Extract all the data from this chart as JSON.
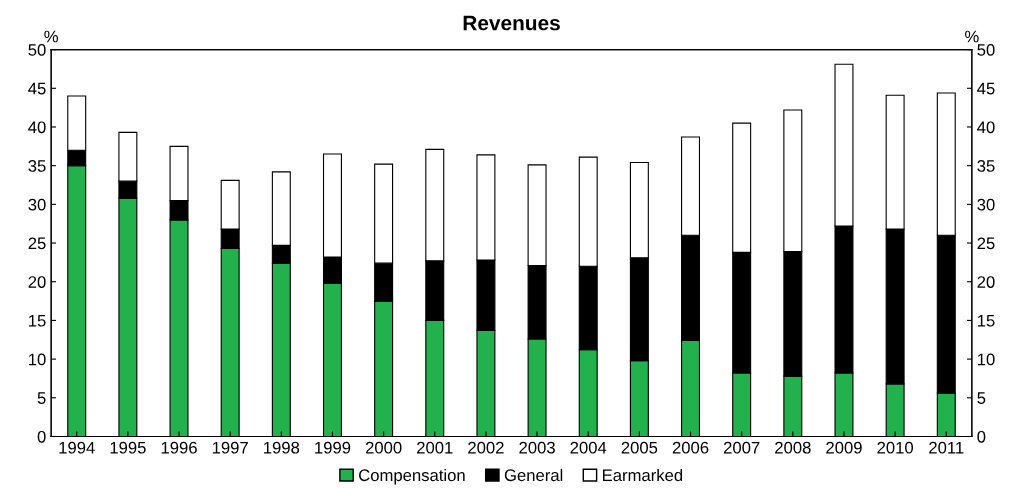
{
  "chart_data": {
    "type": "bar",
    "title": "Revenues",
    "ylabel": "%",
    "y2label": "%",
    "stacked": true,
    "categories": [
      "1994",
      "1995",
      "1996",
      "1997",
      "1998",
      "1999",
      "2000",
      "2001",
      "2002",
      "2003",
      "2004",
      "2005",
      "2006",
      "2007",
      "2008",
      "2009",
      "2010",
      "2011"
    ],
    "series": [
      {
        "name": "Compensation",
        "color": "#22b14c",
        "values": [
          35,
          30.8,
          28,
          24.3,
          22.4,
          19.8,
          17.5,
          15,
          13.7,
          12.6,
          11.2,
          9.8,
          12.4,
          8.2,
          7.8,
          8.2,
          6.8,
          5.6
        ]
      },
      {
        "name": "General",
        "color": "#000000",
        "values": [
          2,
          2.2,
          2.5,
          2.5,
          2.3,
          3.4,
          4.9,
          7.7,
          9.1,
          9.5,
          10.8,
          13.3,
          13.6,
          15.6,
          16.1,
          19,
          20,
          20.4
        ]
      },
      {
        "name": "Earmarked",
        "color": "#ffffff",
        "values": [
          7,
          6.3,
          7,
          6.3,
          9.5,
          13.3,
          12.8,
          14.4,
          13.6,
          13,
          14.1,
          12.3,
          12.7,
          16.7,
          18.3,
          20.9,
          17.3,
          18.4
        ]
      }
    ],
    "ylim": [
      0,
      50
    ],
    "yticks": [
      0,
      5,
      10,
      15,
      20,
      25,
      30,
      35,
      40,
      45,
      50
    ],
    "y2lim": [
      0,
      50
    ],
    "y2ticks": [
      0,
      5,
      10,
      15,
      20,
      25,
      30,
      35,
      40,
      45,
      50
    ],
    "legend": "bottom",
    "grid": false
  }
}
